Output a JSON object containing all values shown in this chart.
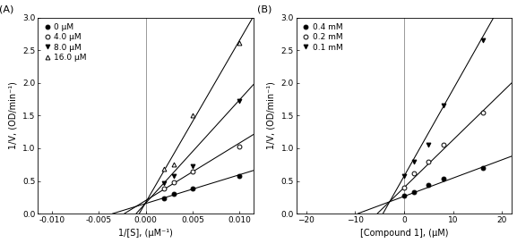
{
  "panel_A": {
    "title": "(A)",
    "xlabel": "1/[S], (μM⁻¹)",
    "ylabel": "1/V, (OD/min⁻¹)",
    "xlim": [
      -0.0115,
      0.0115
    ],
    "ylim": [
      0.0,
      3.0
    ],
    "xticks": [
      -0.01,
      -0.005,
      0.0,
      0.005,
      0.01
    ],
    "yticks": [
      0.0,
      0.5,
      1.0,
      1.5,
      2.0,
      2.5,
      3.0
    ],
    "vline_x": 0.0,
    "series": [
      {
        "label": "0 μM",
        "marker": "o",
        "filled": true,
        "x_data": [
          0.002,
          0.003,
          0.005,
          0.01
        ],
        "y_data": [
          0.24,
          0.3,
          0.38,
          0.58
        ],
        "fit_slope": 44.0,
        "fit_intercept": 0.155
      },
      {
        "label": "4.0 μM",
        "marker": "o",
        "filled": false,
        "x_data": [
          0.002,
          0.003,
          0.005,
          0.01
        ],
        "y_data": [
          0.38,
          0.48,
          0.65,
          1.03
        ],
        "fit_slope": 88.0,
        "fit_intercept": 0.2
      },
      {
        "label": "8.0 μM",
        "marker": "v",
        "filled": true,
        "x_data": [
          0.002,
          0.003,
          0.005,
          0.01
        ],
        "y_data": [
          0.46,
          0.58,
          0.72,
          1.72
        ],
        "fit_slope": 158.0,
        "fit_intercept": 0.16
      },
      {
        "label": "16.0 μM",
        "marker": "^",
        "filled": false,
        "x_data": [
          0.002,
          0.003,
          0.005,
          0.01
        ],
        "y_data": [
          0.68,
          0.75,
          1.5,
          2.62
        ],
        "fit_slope": 248.0,
        "fit_intercept": 0.17
      }
    ]
  },
  "panel_B": {
    "title": "(B)",
    "xlabel": "[Compound 1], (μM)",
    "ylabel": "1/V, (OD/min⁻¹)",
    "xlim": [
      -22,
      22
    ],
    "ylim": [
      0.0,
      3.0
    ],
    "xticks": [
      -20,
      -10,
      0,
      10,
      20
    ],
    "yticks": [
      0.0,
      0.5,
      1.0,
      1.5,
      2.0,
      2.5,
      3.0
    ],
    "vline_x": 0.0,
    "series": [
      {
        "label": "0.4 mM",
        "marker": "o",
        "filled": true,
        "x_data": [
          0,
          2,
          5,
          8,
          16
        ],
        "y_data": [
          0.27,
          0.33,
          0.44,
          0.54,
          0.7
        ],
        "fit_slope": 0.028,
        "fit_intercept": 0.265,
        "fit_xi": -9.5
      },
      {
        "label": "0.2 mM",
        "marker": "o",
        "filled": false,
        "x_data": [
          0,
          2,
          5,
          8,
          16
        ],
        "y_data": [
          0.4,
          0.62,
          0.8,
          1.05,
          1.55
        ],
        "fit_slope": 0.073,
        "fit_intercept": 0.4,
        "fit_xi": -5.5
      },
      {
        "label": "0.1 mM",
        "marker": "v",
        "filled": true,
        "x_data": [
          0,
          2,
          5,
          8,
          16
        ],
        "y_data": [
          0.58,
          0.8,
          1.05,
          1.65,
          2.65
        ],
        "fit_slope": 0.133,
        "fit_intercept": 0.575,
        "fit_xi": -4.3
      }
    ]
  },
  "figure_bg": "#ffffff",
  "font_size_label": 7.0,
  "font_size_tick": 6.5,
  "font_size_legend": 6.5,
  "font_size_title": 8,
  "marker_size": 3.5,
  "line_width": 0.75
}
